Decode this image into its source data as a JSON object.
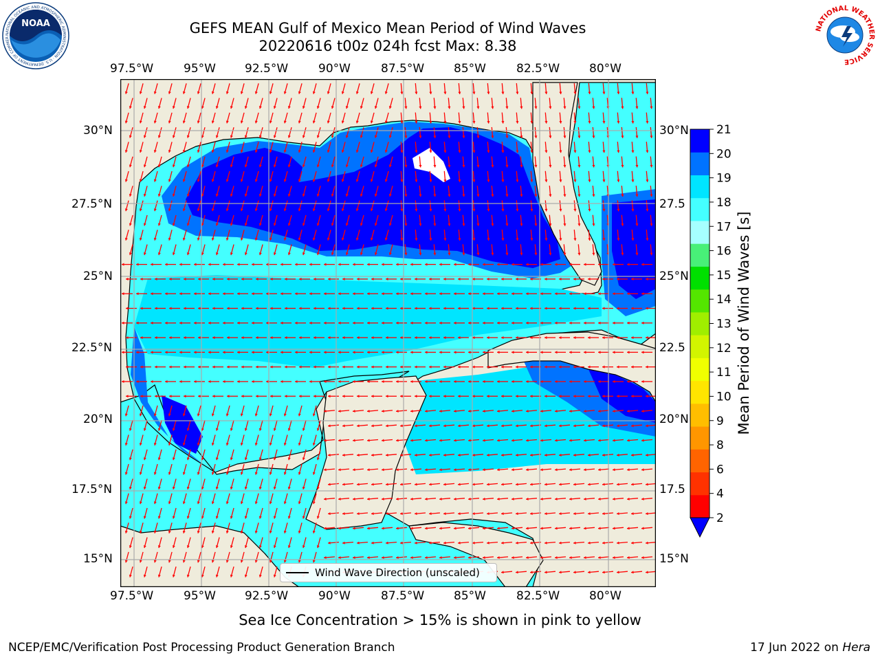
{
  "header": {
    "title_line1": "GEFS MEAN Gulf of Mexico Mean Period of Wind Waves",
    "title_line2": "20220616 t00z 024h fcst   Max: 8.38"
  },
  "logos": {
    "noaa": {
      "text": "NOAA",
      "ring_text": "NATIONAL OCEANIC AND ATMOSPHERIC ADMINISTRATION · U.S. DEPARTMENT OF COMMERCE"
    },
    "nws": {
      "ring_text": "NATIONAL WEATHER SERVICE"
    }
  },
  "map": {
    "lon_labels": [
      "97.5°W",
      "95°W",
      "92.5°W",
      "90°W",
      "87.5°W",
      "85°W",
      "82.5°W",
      "80°W"
    ],
    "lat_labels_left": [
      "30°N",
      "27.5°N",
      "25°N",
      "22.5°N",
      "20°N",
      "17.5°N",
      "15°N"
    ],
    "lat_labels_right": [
      "30°N",
      "27.5",
      "25°N",
      "22.5",
      "20°N",
      "17.5",
      "15°N"
    ],
    "legend_label": "Wind Wave Direction (unscaled)"
  },
  "colorbar": {
    "label": "Mean Period of Wind Waves [s]",
    "ticks": [
      "2",
      "4",
      "6",
      "8",
      "9",
      "10",
      "11",
      "12",
      "13",
      "14",
      "15",
      "16",
      "17",
      "18",
      "19",
      "20",
      "21"
    ],
    "colors": [
      "#0000ff",
      "#0073ff",
      "#00e5ff",
      "#44ffff",
      "#a6ffff",
      "#48f078",
      "#00e000",
      "#54e600",
      "#a0ee00",
      "#d2f500",
      "#f0ff00",
      "#ffe500",
      "#ffbe00",
      "#ff9600",
      "#ff6400",
      "#ff3200",
      "#ff0000"
    ]
  },
  "colors": {
    "land": "#efecdc",
    "grid": "#aaaaaa",
    "arrow": "#ff0000",
    "wave_colors": [
      "#0000ff",
      "#0073ff",
      "#00e5ff",
      "#44ffff"
    ]
  },
  "footer": {
    "sea_ice_note": "Sea Ice Concentration > 15% is shown in pink to yellow",
    "branch": "NCEP/EMC/Verification Post Processing Product Generation Branch",
    "date": "17 Jun 2022 on",
    "host": "Hera"
  }
}
